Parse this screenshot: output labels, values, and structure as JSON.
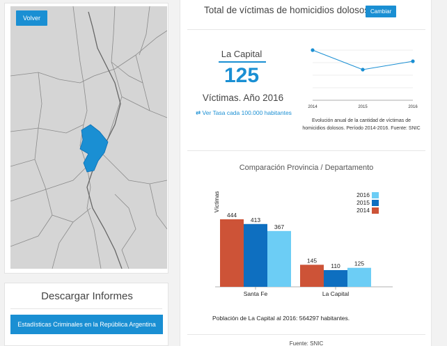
{
  "map": {
    "back_label": "Volver",
    "highlight_color": "#1a8fd3"
  },
  "downloads": {
    "title": "Descargar Informes",
    "button_label": "Estadísticas Criminales en la República Argentina"
  },
  "header": {
    "title": "Total de víctimas de homicidios dolosos",
    "change_label": "Cambiar"
  },
  "summary": {
    "place": "La Capital",
    "value": "125",
    "label": "Víctimas. Año 2016",
    "rate_link": "⇄ Ver Tasa cada 100.000 habitantes"
  },
  "trend": {
    "caption": "Evolución anual de la cantidad de víctimas de homicidios dolosos. Período 2014-2016. Fuente: SNIC"
  },
  "comparison": {
    "title": "Comparación Provincia / Departamento"
  },
  "footer": {
    "population": "Población de La Capital al 2016: 564297 habitantes.",
    "source": "Fuente: SNIC"
  },
  "chart_data": [
    {
      "type": "line",
      "x": [
        "2014",
        "2015",
        "2016"
      ],
      "series": [
        {
          "values": [
            145,
            110,
            125
          ]
        }
      ],
      "color": "#1a8fd3"
    },
    {
      "type": "bar",
      "categories": [
        "Santa Fe",
        "La Capital"
      ],
      "ylabel": "Víctimas",
      "series": [
        {
          "name": "2014",
          "values": [
            444,
            145
          ],
          "color": "#cd5337"
        },
        {
          "name": "2015",
          "values": [
            413,
            110
          ],
          "color": "#0e6fc0"
        },
        {
          "name": "2016",
          "values": [
            367,
            125
          ],
          "color": "#6ccdf5"
        }
      ],
      "legend_order": [
        "2016",
        "2015",
        "2014"
      ],
      "legend_position": "top-right"
    }
  ]
}
